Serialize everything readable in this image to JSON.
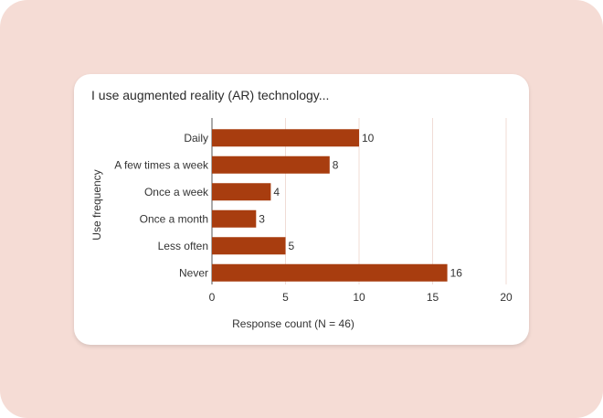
{
  "chart_data": {
    "type": "bar",
    "orientation": "horizontal",
    "title": "I use augmented reality (AR) technology...",
    "xlabel": "Response count (N = 46)",
    "ylabel": "Use frequency",
    "categories": [
      "Daily",
      "A few times a week",
      "Once a week",
      "Once a month",
      "Less often",
      "Never"
    ],
    "values": [
      10,
      8,
      4,
      3,
      5,
      16
    ],
    "xlim": [
      0,
      20
    ],
    "xticks": [
      0,
      5,
      10,
      15,
      20
    ],
    "grid": "vertical",
    "legend": "none",
    "bar_color": "#a83d0f"
  },
  "colors": {
    "page_background": "#f5dcd5",
    "card_background": "#ffffff",
    "grid": "#f0dcd6"
  }
}
